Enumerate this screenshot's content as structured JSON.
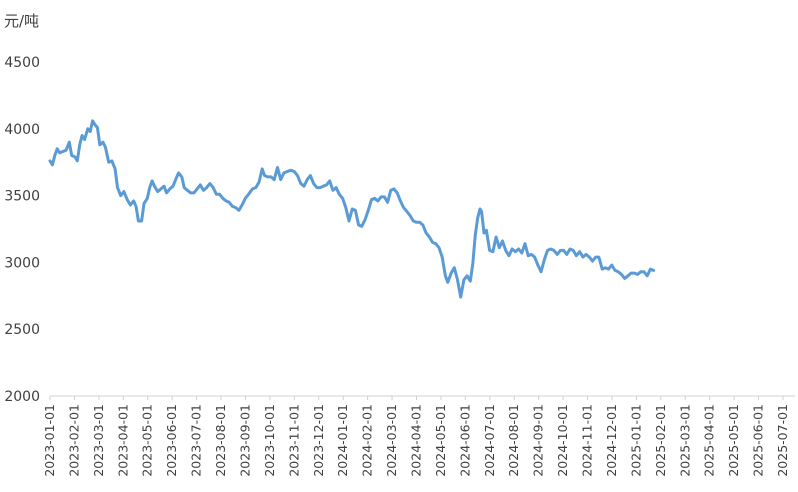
{
  "chart_data": {
    "type": "line",
    "unit_label": "元/吨",
    "title": "",
    "xlabel": "",
    "ylabel": "",
    "ylim": [
      2000,
      4500
    ],
    "yticks": [
      2000,
      2500,
      3000,
      3500,
      4000,
      4500
    ],
    "grid": false,
    "legend": "none",
    "line_color": "#5B9BD5",
    "xticks": [
      "2023-01-01",
      "2023-02-01",
      "2023-03-01",
      "2023-04-01",
      "2023-05-01",
      "2023-06-01",
      "2023-07-01",
      "2023-08-01",
      "2023-09-01",
      "2023-10-01",
      "2023-11-01",
      "2023-12-01",
      "2024-01-01",
      "2024-02-01",
      "2024-03-01",
      "2024-04-01",
      "2024-05-01",
      "2024-06-01",
      "2024-07-01",
      "2024-08-01",
      "2024-09-01",
      "2024-10-01",
      "2024-11-01",
      "2024-12-01",
      "2025-01-01",
      "2025-02-01",
      "2025-03-01",
      "2025-04-01",
      "2025-05-01",
      "2025-06-01",
      "2025-07-01"
    ],
    "series": [
      {
        "name": "",
        "points": [
          [
            "2023-01-01",
            3760
          ],
          [
            "2023-01-04",
            3730
          ],
          [
            "2023-01-07",
            3800
          ],
          [
            "2023-01-10",
            3850
          ],
          [
            "2023-01-13",
            3820
          ],
          [
            "2023-01-17",
            3830
          ],
          [
            "2023-01-21",
            3840
          ],
          [
            "2023-01-25",
            3900
          ],
          [
            "2023-01-28",
            3800
          ],
          [
            "2023-02-01",
            3790
          ],
          [
            "2023-02-04",
            3760
          ],
          [
            "2023-02-07",
            3880
          ],
          [
            "2023-02-10",
            3950
          ],
          [
            "2023-02-13",
            3920
          ],
          [
            "2023-02-17",
            4000
          ],
          [
            "2023-02-20",
            3980
          ],
          [
            "2023-02-23",
            4060
          ],
          [
            "2023-02-26",
            4030
          ],
          [
            "2023-03-01",
            4010
          ],
          [
            "2023-03-04",
            3880
          ],
          [
            "2023-03-08",
            3900
          ],
          [
            "2023-03-11",
            3860
          ],
          [
            "2023-03-15",
            3750
          ],
          [
            "2023-03-19",
            3760
          ],
          [
            "2023-03-23",
            3700
          ],
          [
            "2023-03-26",
            3560
          ],
          [
            "2023-03-30",
            3500
          ],
          [
            "2023-04-03",
            3530
          ],
          [
            "2023-04-07",
            3470
          ],
          [
            "2023-04-11",
            3430
          ],
          [
            "2023-04-15",
            3460
          ],
          [
            "2023-04-18",
            3420
          ],
          [
            "2023-04-21",
            3310
          ],
          [
            "2023-04-25",
            3310
          ],
          [
            "2023-04-28",
            3440
          ],
          [
            "2023-05-02",
            3480
          ],
          [
            "2023-05-05",
            3560
          ],
          [
            "2023-05-08",
            3610
          ],
          [
            "2023-05-11",
            3570
          ],
          [
            "2023-05-15",
            3530
          ],
          [
            "2023-05-19",
            3550
          ],
          [
            "2023-05-23",
            3570
          ],
          [
            "2023-05-26",
            3520
          ],
          [
            "2023-05-30",
            3550
          ],
          [
            "2023-06-03",
            3570
          ],
          [
            "2023-06-07",
            3630
          ],
          [
            "2023-06-10",
            3670
          ],
          [
            "2023-06-14",
            3640
          ],
          [
            "2023-06-17",
            3560
          ],
          [
            "2023-06-21",
            3540
          ],
          [
            "2023-06-25",
            3520
          ],
          [
            "2023-06-29",
            3520
          ],
          [
            "2023-07-03",
            3550
          ],
          [
            "2023-07-07",
            3580
          ],
          [
            "2023-07-11",
            3540
          ],
          [
            "2023-07-15",
            3560
          ],
          [
            "2023-07-19",
            3590
          ],
          [
            "2023-07-23",
            3560
          ],
          [
            "2023-07-27",
            3510
          ],
          [
            "2023-07-31",
            3510
          ],
          [
            "2023-08-04",
            3480
          ],
          [
            "2023-08-08",
            3460
          ],
          [
            "2023-08-12",
            3450
          ],
          [
            "2023-08-16",
            3420
          ],
          [
            "2023-08-20",
            3410
          ],
          [
            "2023-08-24",
            3390
          ],
          [
            "2023-08-28",
            3430
          ],
          [
            "2023-09-01",
            3480
          ],
          [
            "2023-09-05",
            3510
          ],
          [
            "2023-09-10",
            3550
          ],
          [
            "2023-09-14",
            3560
          ],
          [
            "2023-09-18",
            3600
          ],
          [
            "2023-09-22",
            3700
          ],
          [
            "2023-09-25",
            3650
          ],
          [
            "2023-09-29",
            3640
          ],
          [
            "2023-10-03",
            3640
          ],
          [
            "2023-10-07",
            3620
          ],
          [
            "2023-10-11",
            3710
          ],
          [
            "2023-10-15",
            3620
          ],
          [
            "2023-10-19",
            3670
          ],
          [
            "2023-10-23",
            3680
          ],
          [
            "2023-10-28",
            3690
          ],
          [
            "2023-11-01",
            3680
          ],
          [
            "2023-11-05",
            3650
          ],
          [
            "2023-11-09",
            3590
          ],
          [
            "2023-11-13",
            3570
          ],
          [
            "2023-11-17",
            3620
          ],
          [
            "2023-11-21",
            3650
          ],
          [
            "2023-11-25",
            3590
          ],
          [
            "2023-11-29",
            3560
          ],
          [
            "2023-12-03",
            3560
          ],
          [
            "2023-12-07",
            3570
          ],
          [
            "2023-12-11",
            3580
          ],
          [
            "2023-12-15",
            3610
          ],
          [
            "2023-12-19",
            3540
          ],
          [
            "2023-12-23",
            3560
          ],
          [
            "2023-12-27",
            3510
          ],
          [
            "2023-12-31",
            3480
          ],
          [
            "2024-01-04",
            3410
          ],
          [
            "2024-01-08",
            3310
          ],
          [
            "2024-01-12",
            3400
          ],
          [
            "2024-01-16",
            3390
          ],
          [
            "2024-01-20",
            3280
          ],
          [
            "2024-01-24",
            3270
          ],
          [
            "2024-01-28",
            3320
          ],
          [
            "2024-02-01",
            3390
          ],
          [
            "2024-02-05",
            3470
          ],
          [
            "2024-02-09",
            3480
          ],
          [
            "2024-02-13",
            3460
          ],
          [
            "2024-02-17",
            3490
          ],
          [
            "2024-02-21",
            3490
          ],
          [
            "2024-02-25",
            3450
          ],
          [
            "2024-02-29",
            3540
          ],
          [
            "2024-03-04",
            3550
          ],
          [
            "2024-03-08",
            3520
          ],
          [
            "2024-03-12",
            3460
          ],
          [
            "2024-03-16",
            3410
          ],
          [
            "2024-03-20",
            3380
          ],
          [
            "2024-03-24",
            3350
          ],
          [
            "2024-03-28",
            3310
          ],
          [
            "2024-04-01",
            3300
          ],
          [
            "2024-04-05",
            3300
          ],
          [
            "2024-04-09",
            3280
          ],
          [
            "2024-04-13",
            3220
          ],
          [
            "2024-04-17",
            3190
          ],
          [
            "2024-04-21",
            3150
          ],
          [
            "2024-04-25",
            3140
          ],
          [
            "2024-04-29",
            3110
          ],
          [
            "2024-05-03",
            3040
          ],
          [
            "2024-05-07",
            2900
          ],
          [
            "2024-05-10",
            2850
          ],
          [
            "2024-05-14",
            2920
          ],
          [
            "2024-05-18",
            2960
          ],
          [
            "2024-05-22",
            2870
          ],
          [
            "2024-05-26",
            2740
          ],
          [
            "2024-05-30",
            2870
          ],
          [
            "2024-06-03",
            2900
          ],
          [
            "2024-06-07",
            2860
          ],
          [
            "2024-06-10",
            2990
          ],
          [
            "2024-06-13",
            3200
          ],
          [
            "2024-06-16",
            3330
          ],
          [
            "2024-06-19",
            3400
          ],
          [
            "2024-06-21",
            3380
          ],
          [
            "2024-06-24",
            3220
          ],
          [
            "2024-06-27",
            3240
          ],
          [
            "2024-07-01",
            3090
          ],
          [
            "2024-07-05",
            3080
          ],
          [
            "2024-07-09",
            3190
          ],
          [
            "2024-07-13",
            3110
          ],
          [
            "2024-07-17",
            3160
          ],
          [
            "2024-07-21",
            3090
          ],
          [
            "2024-07-25",
            3050
          ],
          [
            "2024-07-29",
            3100
          ],
          [
            "2024-08-02",
            3080
          ],
          [
            "2024-08-06",
            3100
          ],
          [
            "2024-08-10",
            3070
          ],
          [
            "2024-08-14",
            3140
          ],
          [
            "2024-08-18",
            3050
          ],
          [
            "2024-08-22",
            3060
          ],
          [
            "2024-08-26",
            3040
          ],
          [
            "2024-08-30",
            2980
          ],
          [
            "2024-09-03",
            2930
          ],
          [
            "2024-09-07",
            3020
          ],
          [
            "2024-09-11",
            3090
          ],
          [
            "2024-09-15",
            3100
          ],
          [
            "2024-09-19",
            3090
          ],
          [
            "2024-09-23",
            3060
          ],
          [
            "2024-09-27",
            3090
          ],
          [
            "2024-10-01",
            3090
          ],
          [
            "2024-10-05",
            3060
          ],
          [
            "2024-10-09",
            3100
          ],
          [
            "2024-10-13",
            3090
          ],
          [
            "2024-10-17",
            3050
          ],
          [
            "2024-10-21",
            3080
          ],
          [
            "2024-10-25",
            3040
          ],
          [
            "2024-10-29",
            3060
          ],
          [
            "2024-11-02",
            3040
          ],
          [
            "2024-11-06",
            3010
          ],
          [
            "2024-11-10",
            3040
          ],
          [
            "2024-11-14",
            3040
          ],
          [
            "2024-11-18",
            2950
          ],
          [
            "2024-11-22",
            2960
          ],
          [
            "2024-11-26",
            2950
          ],
          [
            "2024-11-30",
            2980
          ],
          [
            "2024-12-04",
            2940
          ],
          [
            "2024-12-08",
            2930
          ],
          [
            "2024-12-12",
            2910
          ],
          [
            "2024-12-16",
            2880
          ],
          [
            "2024-12-20",
            2900
          ],
          [
            "2024-12-24",
            2920
          ],
          [
            "2024-12-28",
            2920
          ],
          [
            "2025-01-01",
            2910
          ],
          [
            "2025-01-05",
            2930
          ],
          [
            "2025-01-09",
            2930
          ],
          [
            "2025-01-13",
            2900
          ],
          [
            "2025-01-17",
            2950
          ],
          [
            "2025-01-21",
            2940
          ]
        ]
      }
    ]
  }
}
